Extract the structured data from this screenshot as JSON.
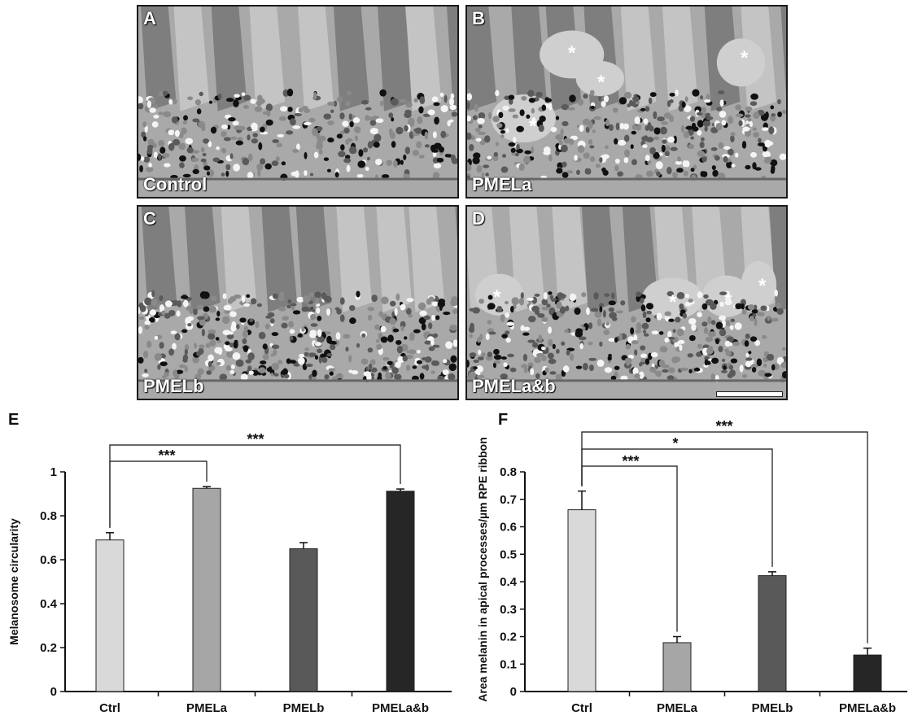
{
  "micrographs": [
    {
      "id": "A",
      "condition": "Control",
      "stars": 0,
      "scale_bar": false
    },
    {
      "id": "B",
      "condition": "PMELa",
      "stars": 4,
      "scale_bar": false
    },
    {
      "id": "C",
      "condition": "PMELb",
      "stars": 0,
      "scale_bar": false
    },
    {
      "id": "D",
      "condition": "PMELa&b",
      "stars": 4,
      "scale_bar": true
    }
  ],
  "asterisk": "*",
  "chart_data": [
    {
      "panel": "E",
      "type": "bar",
      "categories": [
        "Ctrl",
        "PMELa",
        "PMELb",
        "PMELa&b"
      ],
      "values": [
        0.69,
        0.925,
        0.65,
        0.912
      ],
      "errors": [
        0.033,
        0.008,
        0.028,
        0.01
      ],
      "colors": [
        "#d9d9d9",
        "#a6a6a6",
        "#595959",
        "#262626"
      ],
      "ylabel": "Melanosome circularity",
      "xlabel": "",
      "ylim": [
        0,
        1
      ],
      "yticks": [
        "0",
        "0.2",
        "0.4",
        "0.6",
        "0.8",
        "1"
      ],
      "grid": false,
      "significance": [
        {
          "from": "Ctrl",
          "to": "PMELa",
          "label": "***"
        },
        {
          "from": "Ctrl",
          "to": "PMELa&b",
          "label": "***"
        }
      ]
    },
    {
      "panel": "F",
      "type": "bar",
      "categories": [
        "Ctrl",
        "PMELa",
        "PMELb",
        "PMELa&b"
      ],
      "values": [
        0.662,
        0.178,
        0.422,
        0.133
      ],
      "errors": [
        0.068,
        0.022,
        0.014,
        0.025
      ],
      "colors": [
        "#d9d9d9",
        "#a6a6a6",
        "#595959",
        "#262626"
      ],
      "ylabel": "Area melanin in apical processes/µm RPE ribbon",
      "xlabel": "",
      "ylim": [
        0,
        0.8
      ],
      "yticks": [
        "0",
        "0.1",
        "0.2",
        "0.3",
        "0.4",
        "0.5",
        "0.6",
        "0.7",
        "0.8"
      ],
      "grid": false,
      "significance": [
        {
          "from": "Ctrl",
          "to": "PMELa",
          "label": "***"
        },
        {
          "from": "Ctrl",
          "to": "PMELb",
          "label": "*"
        },
        {
          "from": "Ctrl",
          "to": "PMELa&b",
          "label": "***"
        }
      ]
    }
  ]
}
